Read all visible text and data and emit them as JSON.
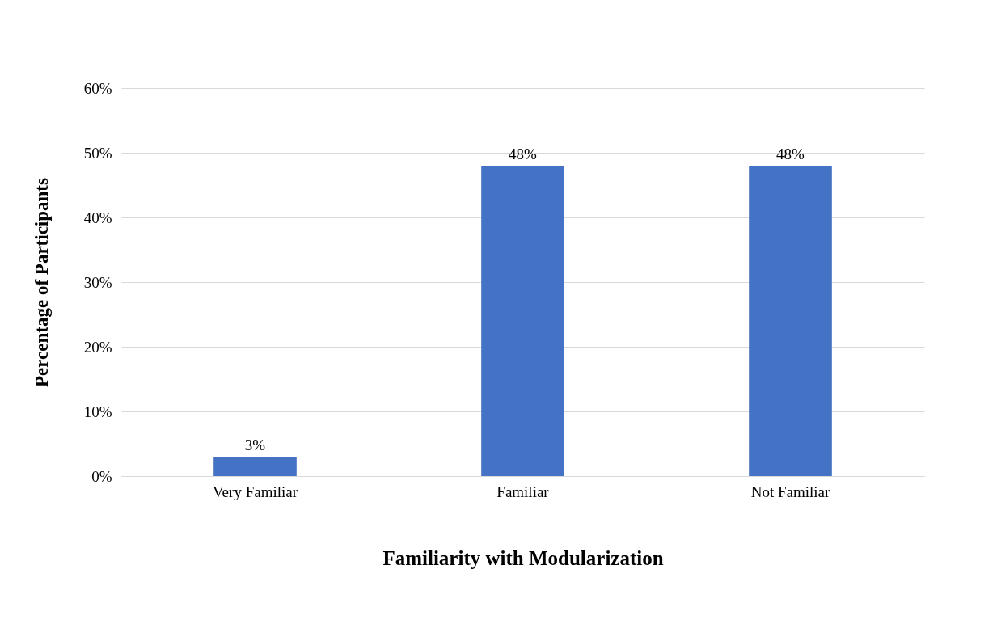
{
  "chart_data": {
    "type": "bar",
    "xlabel": "Familiarity with Modularization",
    "ylabel": "Percentage of Participants",
    "categories": [
      "Very Familiar",
      "Familiar",
      "Not Familiar"
    ],
    "values": [
      3,
      48,
      48
    ],
    "value_labels": [
      "3%",
      "48%",
      "48%"
    ],
    "color": "#4472c4",
    "ylim": [
      0,
      60
    ],
    "yticks": [
      {
        "value": 0,
        "label": "0%"
      },
      {
        "value": 10,
        "label": "10%"
      },
      {
        "value": 20,
        "label": "20%"
      },
      {
        "value": 30,
        "label": "30%"
      },
      {
        "value": 40,
        "label": "40%"
      },
      {
        "value": 50,
        "label": "50%"
      },
      {
        "value": 60,
        "label": "60%"
      }
    ],
    "grid": "y"
  }
}
